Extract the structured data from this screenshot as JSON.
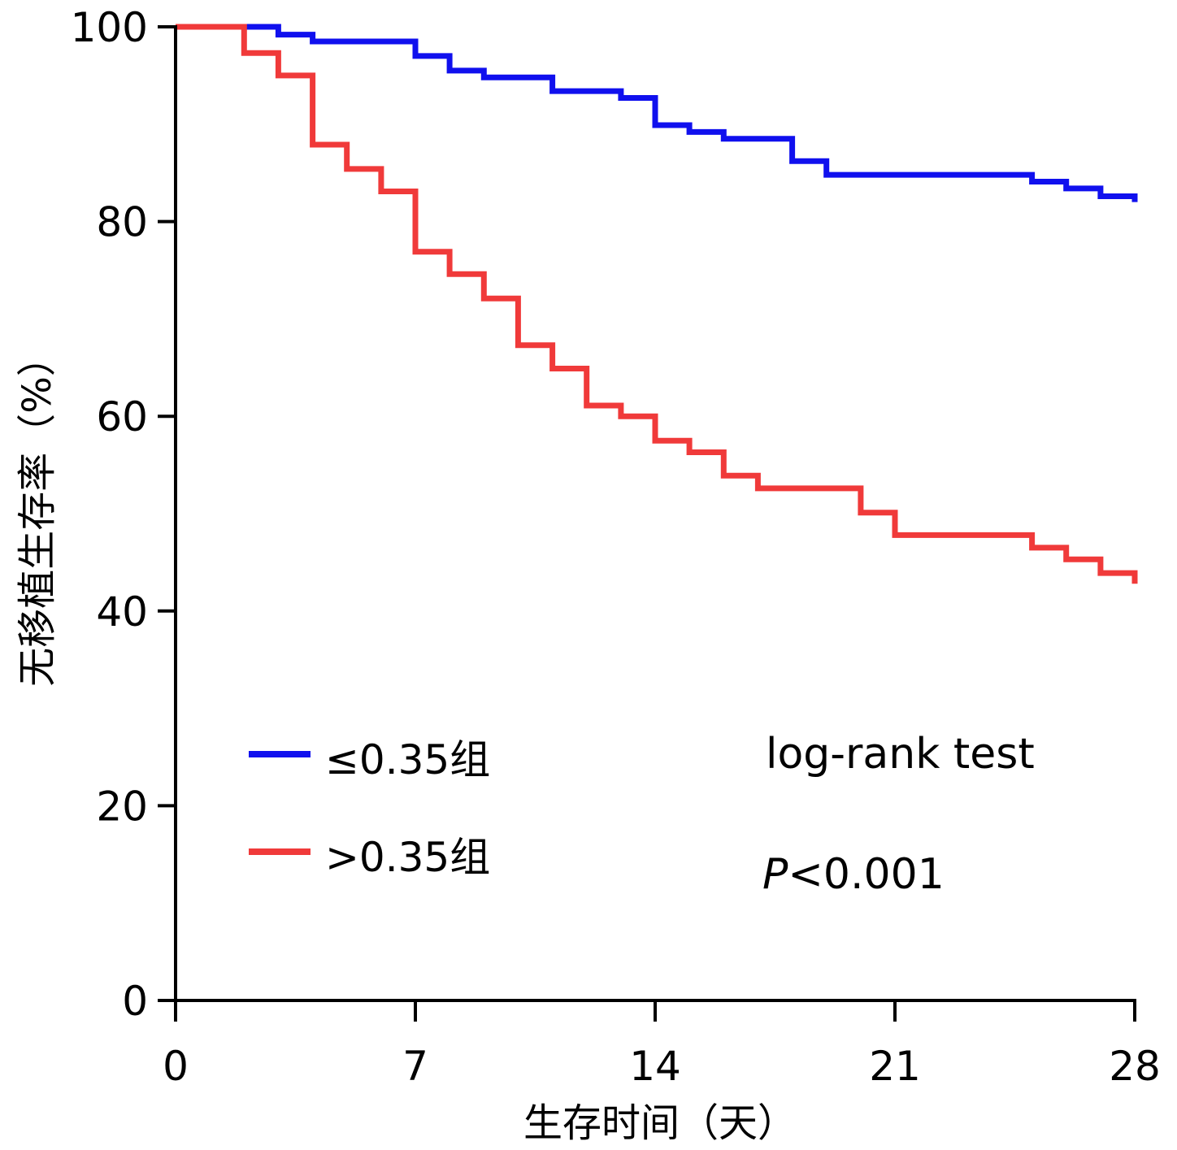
{
  "chart_data": {
    "type": "line",
    "subtype": "kaplan-meier step",
    "xlabel": "生存时间（天）",
    "ylabel": "无移植生存率（%）",
    "xlim": [
      0,
      28
    ],
    "ylim": [
      0,
      100
    ],
    "xticks": [
      0,
      7,
      14,
      21,
      28
    ],
    "yticks": [
      0,
      20,
      40,
      60,
      80,
      100
    ],
    "grid": false,
    "legend_position": "bottom-left",
    "series": [
      {
        "name": "≤0.35组",
        "color": "#1010ee",
        "x": [
          0,
          3,
          4,
          7,
          8,
          9,
          11,
          13,
          14,
          15,
          16,
          18,
          19,
          22,
          25,
          26,
          27,
          28
        ],
        "y": [
          100,
          99.2,
          98.5,
          97.0,
          95.5,
          94.8,
          93.4,
          92.7,
          89.9,
          89.2,
          88.5,
          86.2,
          84.8,
          84.8,
          84.1,
          83.4,
          82.6,
          82.0
        ]
      },
      {
        "name": ">0.35组",
        "color": "#f03a3a",
        "x": [
          0,
          2,
          3,
          4,
          5,
          6,
          7,
          8,
          9,
          10,
          11,
          12,
          13,
          14,
          15,
          16,
          17,
          20,
          21,
          25,
          26,
          27,
          28
        ],
        "y": [
          100,
          97.3,
          95.0,
          87.9,
          85.4,
          83.1,
          76.9,
          74.6,
          72.1,
          67.3,
          64.9,
          61.1,
          60.0,
          57.5,
          56.3,
          53.9,
          52.6,
          50.1,
          47.8,
          46.5,
          45.3,
          43.9,
          42.8
        ]
      }
    ],
    "annotations": [
      "log-rank test",
      "P<0.001"
    ]
  },
  "annotation": {
    "test_name": "log-rank test",
    "p_symbol": "P",
    "p_value": "<0.001"
  }
}
